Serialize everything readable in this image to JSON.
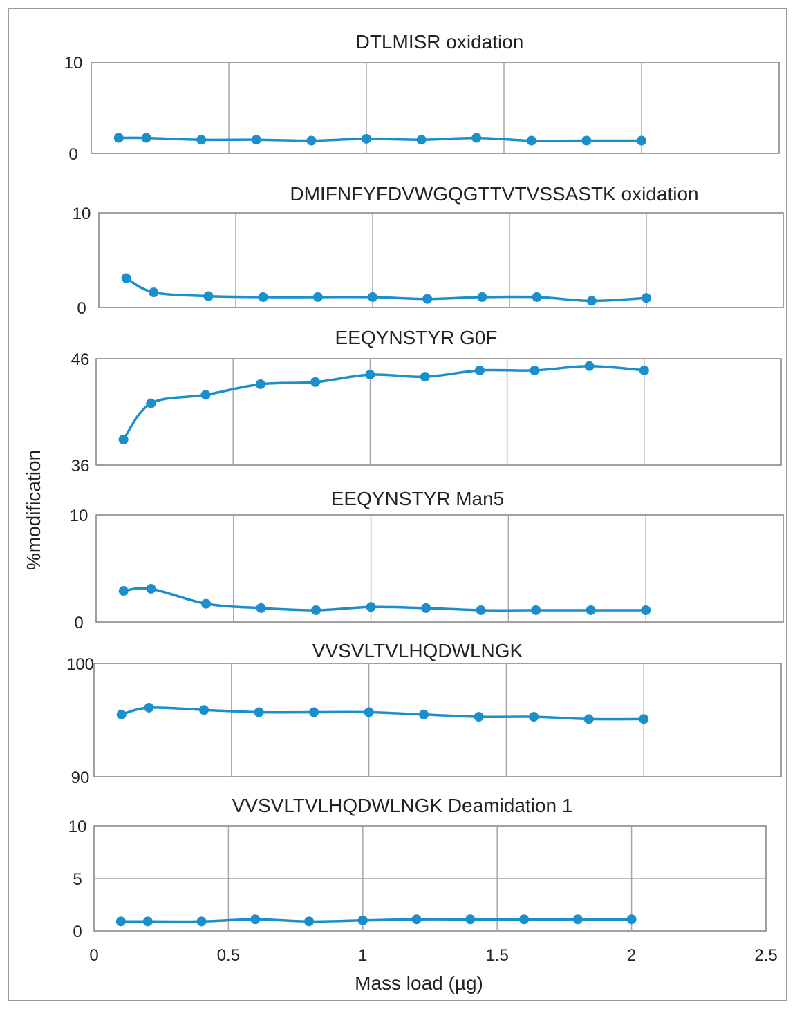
{
  "colors": {
    "series": "#1a8fcc",
    "grid": "#a6a6a6",
    "frame": "#808080"
  },
  "axes": {
    "ylabel": "%modification",
    "xlabel": "Mass load (µg)",
    "x_ticks": [
      "0",
      "0.5",
      "1",
      "1.5",
      "2",
      "2.5"
    ]
  },
  "chart_data": [
    {
      "type": "line",
      "title": "DTLMISR oxidation",
      "xlim": [
        0,
        2.5
      ],
      "ylim": [
        0,
        10
      ],
      "y_ticks": [
        "10",
        "0"
      ],
      "x_grid": [
        0.5,
        1,
        1.5,
        2
      ],
      "x": [
        0.1,
        0.2,
        0.4,
        0.6,
        0.8,
        1.0,
        1.2,
        1.4,
        1.6,
        1.8,
        2.0
      ],
      "values": [
        1.7,
        1.7,
        1.5,
        1.5,
        1.4,
        1.6,
        1.5,
        1.7,
        1.4,
        1.4,
        1.4
      ]
    },
    {
      "type": "line",
      "title": "DMIFNFYFDVWGQGTTVTVSSASTK oxidation",
      "xlim": [
        0,
        2.5
      ],
      "ylim": [
        0,
        10
      ],
      "y_ticks": [
        "10",
        "0"
      ],
      "x_grid": [
        0.5,
        1,
        1.5,
        2
      ],
      "x": [
        0.1,
        0.2,
        0.4,
        0.6,
        0.8,
        1.0,
        1.2,
        1.4,
        1.6,
        1.8,
        2.0
      ],
      "values": [
        3.1,
        1.6,
        1.2,
        1.1,
        1.1,
        1.1,
        0.9,
        1.1,
        1.1,
        0.7,
        1.0
      ]
    },
    {
      "type": "line",
      "title": "EEQYNSTYR G0F",
      "xlim": [
        0,
        2.5
      ],
      "ylim": [
        36,
        46
      ],
      "y_ticks": [
        "46",
        "36"
      ],
      "x_grid": [
        0.5,
        1,
        1.5,
        2
      ],
      "x": [
        0.1,
        0.2,
        0.4,
        0.6,
        0.8,
        1.0,
        1.2,
        1.4,
        1.6,
        1.8,
        2.0
      ],
      "values": [
        38.4,
        41.8,
        42.6,
        43.6,
        43.8,
        44.5,
        44.3,
        44.9,
        44.9,
        45.3,
        44.9
      ]
    },
    {
      "type": "line",
      "title": "EEQYNSTYR Man5",
      "xlim": [
        0,
        2.5
      ],
      "ylim": [
        0,
        10
      ],
      "y_ticks": [
        "10",
        "0"
      ],
      "x_grid": [
        0.5,
        1,
        1.5,
        2
      ],
      "x": [
        0.1,
        0.2,
        0.4,
        0.6,
        0.8,
        1.0,
        1.2,
        1.4,
        1.6,
        1.8,
        2.0
      ],
      "values": [
        2.9,
        3.1,
        1.7,
        1.3,
        1.1,
        1.4,
        1.3,
        1.1,
        1.1,
        1.1,
        1.1
      ]
    },
    {
      "type": "line",
      "title": "VVSVLTVLHQDWLNGK",
      "xlim": [
        0,
        2.5
      ],
      "ylim": [
        90,
        100
      ],
      "y_ticks": [
        "100",
        "90"
      ],
      "x_grid": [
        0.5,
        1,
        1.5,
        2
      ],
      "x": [
        0.1,
        0.2,
        0.4,
        0.6,
        0.8,
        1.0,
        1.2,
        1.4,
        1.6,
        1.8,
        2.0
      ],
      "values": [
        95.5,
        96.1,
        95.9,
        95.7,
        95.7,
        95.7,
        95.5,
        95.3,
        95.3,
        95.1,
        95.1
      ]
    },
    {
      "type": "line",
      "title": "VVSVLTVLHQDWLNGK Deamidation 1",
      "xlim": [
        0,
        2.5
      ],
      "ylim": [
        0,
        10
      ],
      "y_ticks": [
        "10",
        "5",
        "0"
      ],
      "y_grid": [
        5
      ],
      "x_grid": [
        0.5,
        1,
        1.5,
        2
      ],
      "x": [
        0.1,
        0.2,
        0.4,
        0.6,
        0.8,
        1.0,
        1.2,
        1.4,
        1.6,
        1.8,
        2.0
      ],
      "values": [
        0.9,
        0.9,
        0.9,
        1.1,
        0.9,
        1.0,
        1.1,
        1.1,
        1.1,
        1.1,
        1.1
      ]
    }
  ]
}
